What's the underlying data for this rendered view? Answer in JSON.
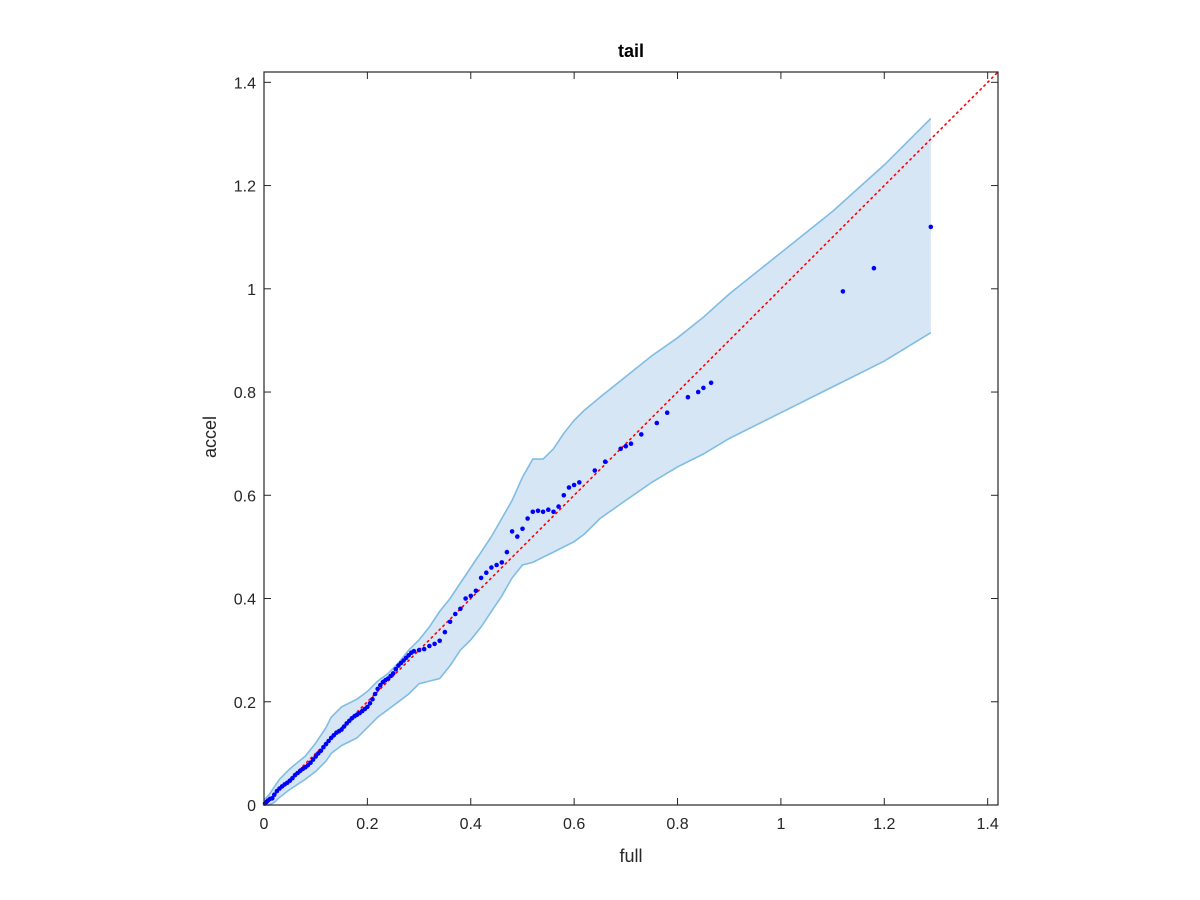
{
  "chart_data": {
    "type": "scatter",
    "title": "tail",
    "xlabel": "full",
    "ylabel": "accel",
    "xlim": [
      0,
      1.42
    ],
    "ylim": [
      0,
      1.42
    ],
    "xticks": [
      0,
      0.2,
      0.4,
      0.6,
      0.8,
      1,
      1.2,
      1.4
    ],
    "yticks": [
      0,
      0.2,
      0.4,
      0.6,
      0.8,
      1,
      1.2,
      1.4
    ],
    "xtick_labels": [
      "0",
      "0.2",
      "0.4",
      "0.6",
      "0.8",
      "1",
      "1.2",
      "1.4"
    ],
    "ytick_labels": [
      "0",
      "0.2",
      "0.4",
      "0.6",
      "0.8",
      "1",
      "1.2",
      "1.4"
    ],
    "grid": false,
    "colors": {
      "points": "#0000ff",
      "reference_line": "#ff0000",
      "band_fill": "#d6e6f4",
      "band_edge": "#7fbde4",
      "axis": "#262626"
    },
    "reference_line": {
      "x": [
        0,
        1.42
      ],
      "y": [
        0,
        1.42
      ],
      "style": "dotted"
    },
    "band": {
      "x": [
        0,
        0.01,
        0.02,
        0.03,
        0.05,
        0.08,
        0.1,
        0.12,
        0.13,
        0.15,
        0.18,
        0.2,
        0.22,
        0.24,
        0.26,
        0.28,
        0.3,
        0.32,
        0.34,
        0.36,
        0.38,
        0.4,
        0.42,
        0.44,
        0.46,
        0.48,
        0.5,
        0.52,
        0.54,
        0.56,
        0.58,
        0.6,
        0.62,
        0.65,
        0.7,
        0.75,
        0.8,
        0.85,
        0.9,
        1.0,
        1.1,
        1.2,
        1.29
      ],
      "upper": [
        0.01,
        0.02,
        0.035,
        0.05,
        0.07,
        0.095,
        0.12,
        0.15,
        0.17,
        0.19,
        0.205,
        0.22,
        0.24,
        0.255,
        0.275,
        0.3,
        0.32,
        0.345,
        0.375,
        0.4,
        0.43,
        0.46,
        0.49,
        0.52,
        0.555,
        0.59,
        0.635,
        0.67,
        0.67,
        0.69,
        0.72,
        0.745,
        0.765,
        0.79,
        0.83,
        0.87,
        0.905,
        0.945,
        0.99,
        1.07,
        1.15,
        1.24,
        1.33
      ],
      "lower": [
        0,
        0,
        0.005,
        0.015,
        0.03,
        0.05,
        0.065,
        0.085,
        0.1,
        0.115,
        0.13,
        0.15,
        0.17,
        0.185,
        0.2,
        0.215,
        0.235,
        0.24,
        0.245,
        0.27,
        0.3,
        0.32,
        0.345,
        0.375,
        0.405,
        0.44,
        0.465,
        0.47,
        0.48,
        0.49,
        0.5,
        0.51,
        0.525,
        0.555,
        0.59,
        0.625,
        0.655,
        0.68,
        0.71,
        0.76,
        0.81,
        0.86,
        0.915
      ]
    },
    "points": {
      "x": [
        0.002,
        0.005,
        0.008,
        0.012,
        0.016,
        0.02,
        0.025,
        0.03,
        0.035,
        0.04,
        0.045,
        0.05,
        0.055,
        0.06,
        0.065,
        0.07,
        0.075,
        0.08,
        0.085,
        0.09,
        0.095,
        0.1,
        0.105,
        0.11,
        0.115,
        0.12,
        0.125,
        0.13,
        0.135,
        0.14,
        0.145,
        0.15,
        0.155,
        0.16,
        0.165,
        0.17,
        0.175,
        0.18,
        0.185,
        0.19,
        0.195,
        0.2,
        0.205,
        0.21,
        0.215,
        0.22,
        0.225,
        0.23,
        0.235,
        0.24,
        0.245,
        0.25,
        0.255,
        0.26,
        0.265,
        0.27,
        0.275,
        0.28,
        0.285,
        0.29,
        0.3,
        0.31,
        0.32,
        0.33,
        0.34,
        0.35,
        0.36,
        0.37,
        0.38,
        0.39,
        0.4,
        0.41,
        0.42,
        0.43,
        0.44,
        0.45,
        0.46,
        0.47,
        0.48,
        0.49,
        0.5,
        0.51,
        0.52,
        0.53,
        0.54,
        0.55,
        0.56,
        0.57,
        0.58,
        0.59,
        0.6,
        0.61,
        0.64,
        0.66,
        0.69,
        0.7,
        0.71,
        0.73,
        0.76,
        0.78,
        0.82,
        0.84,
        0.85,
        0.865,
        1.12,
        1.18,
        1.29
      ],
      "y": [
        0.003,
        0.006,
        0.009,
        0.012,
        0.013,
        0.02,
        0.027,
        0.032,
        0.036,
        0.04,
        0.043,
        0.047,
        0.052,
        0.058,
        0.062,
        0.066,
        0.07,
        0.073,
        0.077,
        0.082,
        0.088,
        0.094,
        0.1,
        0.105,
        0.112,
        0.118,
        0.124,
        0.13,
        0.135,
        0.14,
        0.143,
        0.146,
        0.152,
        0.158,
        0.163,
        0.168,
        0.172,
        0.175,
        0.178,
        0.182,
        0.186,
        0.19,
        0.197,
        0.205,
        0.215,
        0.225,
        0.232,
        0.238,
        0.242,
        0.245,
        0.25,
        0.255,
        0.263,
        0.27,
        0.275,
        0.28,
        0.285,
        0.29,
        0.295,
        0.298,
        0.3,
        0.302,
        0.308,
        0.312,
        0.318,
        0.335,
        0.355,
        0.37,
        0.38,
        0.4,
        0.405,
        0.415,
        0.44,
        0.45,
        0.46,
        0.465,
        0.47,
        0.49,
        0.53,
        0.52,
        0.535,
        0.555,
        0.568,
        0.57,
        0.568,
        0.572,
        0.568,
        0.578,
        0.6,
        0.615,
        0.62,
        0.625,
        0.648,
        0.665,
        0.69,
        0.695,
        0.7,
        0.718,
        0.74,
        0.76,
        0.79,
        0.8,
        0.808,
        0.818,
        0.995,
        1.04,
        1.12
      ]
    }
  }
}
